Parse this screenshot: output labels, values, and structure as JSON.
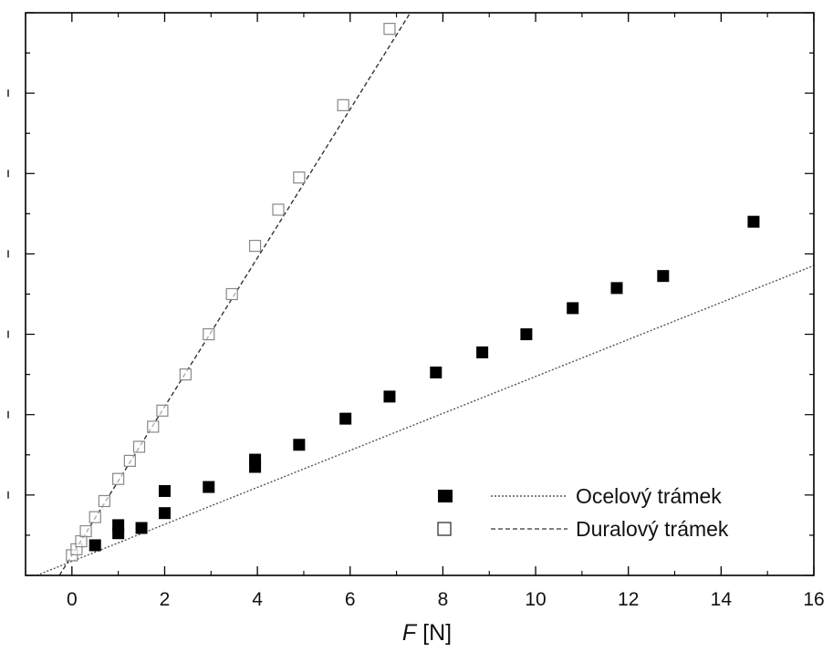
{
  "chart_data": {
    "type": "scatter",
    "xlabel_symbol": "F",
    "xlabel_unit": " [N]",
    "xlim": [
      -1,
      16
    ],
    "ylim": [
      0,
      14
    ],
    "x_ticks": [
      0,
      2,
      4,
      6,
      8,
      10,
      12,
      14,
      16
    ],
    "y_tick_values": [
      2,
      4,
      6,
      8,
      10,
      12
    ],
    "grid": false,
    "legend_position": "bottom-right",
    "series": [
      {
        "name": "Ocelový trámek",
        "marker": "filled-square",
        "line_style": "dotted",
        "color": "#000000",
        "fit": {
          "slope": 0.46,
          "intercept": 0.35
        },
        "points": [
          {
            "x": 0.5,
            "y": 0.75
          },
          {
            "x": 1.0,
            "y": 1.05
          },
          {
            "x": 1.0,
            "y": 1.25
          },
          {
            "x": 1.5,
            "y": 1.18
          },
          {
            "x": 2.0,
            "y": 1.55
          },
          {
            "x": 2.0,
            "y": 2.1
          },
          {
            "x": 2.95,
            "y": 2.2
          },
          {
            "x": 3.95,
            "y": 2.7
          },
          {
            "x": 3.95,
            "y": 2.88
          },
          {
            "x": 4.9,
            "y": 3.25
          },
          {
            "x": 5.9,
            "y": 3.9
          },
          {
            "x": 6.85,
            "y": 4.45
          },
          {
            "x": 7.85,
            "y": 5.05
          },
          {
            "x": 8.85,
            "y": 5.55
          },
          {
            "x": 9.8,
            "y": 6.0
          },
          {
            "x": 10.8,
            "y": 6.65
          },
          {
            "x": 11.75,
            "y": 7.15
          },
          {
            "x": 12.75,
            "y": 7.45
          },
          {
            "x": 14.7,
            "y": 8.8
          }
        ]
      },
      {
        "name": "Duralový trámek",
        "marker": "open-square",
        "line_style": "dashed",
        "color": "#666666",
        "fit": {
          "slope": 1.85,
          "intercept": 0.5
        },
        "points": [
          {
            "x": 0.0,
            "y": 0.5
          },
          {
            "x": 0.1,
            "y": 0.65
          },
          {
            "x": 0.2,
            "y": 0.85
          },
          {
            "x": 0.3,
            "y": 1.1
          },
          {
            "x": 0.5,
            "y": 1.45
          },
          {
            "x": 0.7,
            "y": 1.85
          },
          {
            "x": 1.0,
            "y": 2.4
          },
          {
            "x": 1.25,
            "y": 2.85
          },
          {
            "x": 1.45,
            "y": 3.2
          },
          {
            "x": 1.75,
            "y": 3.7
          },
          {
            "x": 1.95,
            "y": 4.1
          },
          {
            "x": 2.45,
            "y": 5.0
          },
          {
            "x": 2.95,
            "y": 6.0
          },
          {
            "x": 3.45,
            "y": 7.0
          },
          {
            "x": 3.95,
            "y": 8.2
          },
          {
            "x": 4.45,
            "y": 9.1
          },
          {
            "x": 4.9,
            "y": 9.9
          },
          {
            "x": 5.85,
            "y": 11.7
          },
          {
            "x": 6.85,
            "y": 13.6
          }
        ]
      }
    ]
  }
}
